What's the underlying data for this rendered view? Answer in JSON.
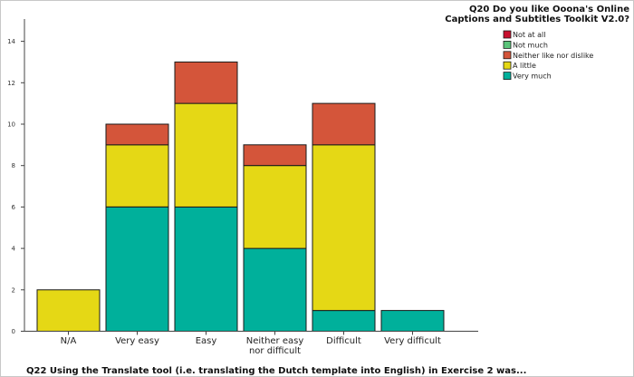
{
  "chart_data": {
    "type": "bar",
    "stacked": true,
    "title": "",
    "xlabel": "Q22 Using the Translate tool (i.e. translating the Dutch template into English) in Exercise 2 was...",
    "ylabel": "",
    "ylim": [
      0,
      15
    ],
    "yticks": [
      0,
      2,
      4,
      6,
      8,
      10,
      12,
      14
    ],
    "grid": false,
    "categories": [
      "N/A",
      "Very easy",
      "Easy",
      "Neither easy nor difficult",
      "Difficult",
      "Very difficult"
    ],
    "category_labels": [
      [
        "N/A"
      ],
      [
        "Very easy"
      ],
      [
        "Easy"
      ],
      [
        "Neither easy",
        "nor difficult"
      ],
      [
        "Difficult"
      ],
      [
        "Very difficult"
      ]
    ],
    "legend": {
      "title": [
        "Q20 Do you like Ooona's Online",
        "Captions and Subtitles Toolkit V2.0?"
      ],
      "placement": "top-right"
    },
    "series": [
      {
        "name": "Not at all",
        "color": "#c8102e",
        "values": [
          0,
          0,
          0,
          0,
          0,
          0
        ]
      },
      {
        "name": "Not much",
        "color": "#5bc47a",
        "values": [
          0,
          0,
          0,
          0,
          0,
          0
        ]
      },
      {
        "name": "Neither like nor dislike",
        "color": "#d4553a",
        "values": [
          0,
          1,
          2,
          1,
          2,
          0
        ]
      },
      {
        "name": "A little",
        "color": "#e5d815",
        "values": [
          2,
          3,
          5,
          4,
          8,
          0
        ]
      },
      {
        "name": "Very much",
        "color": "#00b09b",
        "values": [
          0,
          6,
          6,
          4,
          1,
          1
        ]
      }
    ],
    "stack_order_bottom_to_top": [
      "Very much",
      "A little",
      "Neither like nor dislike",
      "Not much",
      "Not at all"
    ]
  }
}
